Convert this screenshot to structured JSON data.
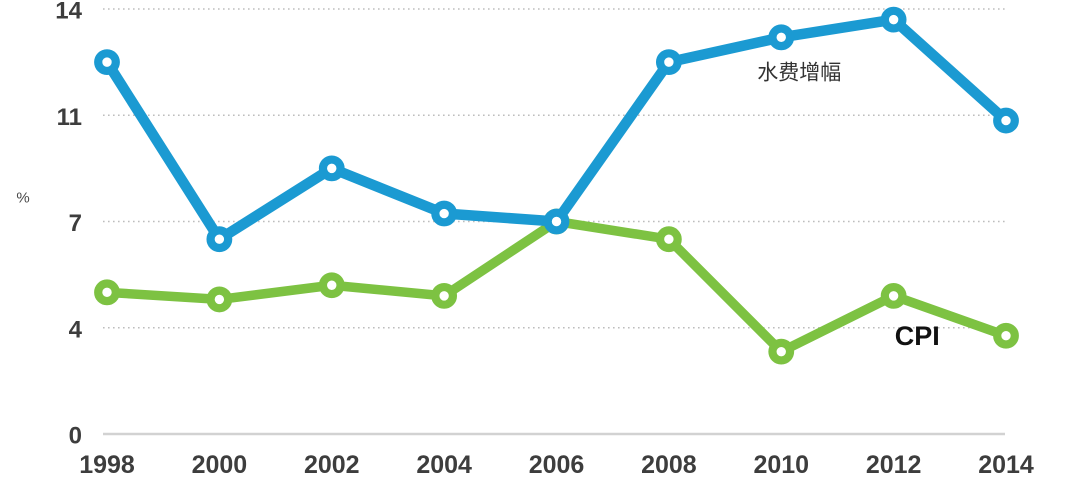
{
  "chart_data": {
    "type": "line",
    "title": "",
    "categories": [
      "1998",
      "2000",
      "2002",
      "2004",
      "2006",
      "2008",
      "2010",
      "2012",
      "2014"
    ],
    "series": [
      {
        "name": "水费增幅",
        "key": "water-fee",
        "color": "#1b9ad2",
        "values": [
          12.5,
          6.5,
          9.0,
          7.3,
          7.0,
          12.5,
          13.2,
          13.7,
          10.8
        ]
      },
      {
        "name": "CPI",
        "key": "cpi",
        "color": "#7dc242",
        "values": [
          5.0,
          4.8,
          5.2,
          4.9,
          7.0,
          6.5,
          3.1,
          4.9,
          3.7
        ]
      }
    ],
    "xlabel": "",
    "ylabel": "%",
    "ylim": [
      0,
      14
    ],
    "yticks": [
      0,
      4,
      7,
      11,
      14
    ],
    "ytick_spacing": "equal",
    "grid": "horizontal-dotted",
    "legend_position": "inline-labels-near-lines",
    "annotations": [
      {
        "text": "水费增幅",
        "series": "water-fee",
        "x_index": 6.16,
        "value": 12.2,
        "bold": false,
        "size": 21
      },
      {
        "text": "CPI",
        "series": "cpi",
        "x_index": 7.21,
        "value": 3.69,
        "bold": true,
        "size": 27
      }
    ]
  },
  "colors": {
    "background": "#ffffff",
    "axis_text": "#3d3d3d",
    "unit_text": "#4a4a4a",
    "annotation_text": "#333333",
    "annotation_bold_text": "#111111",
    "gridline": "#bdbdbd",
    "axis_line": "#d2d2d2",
    "marker_fill": "#ffffff"
  }
}
